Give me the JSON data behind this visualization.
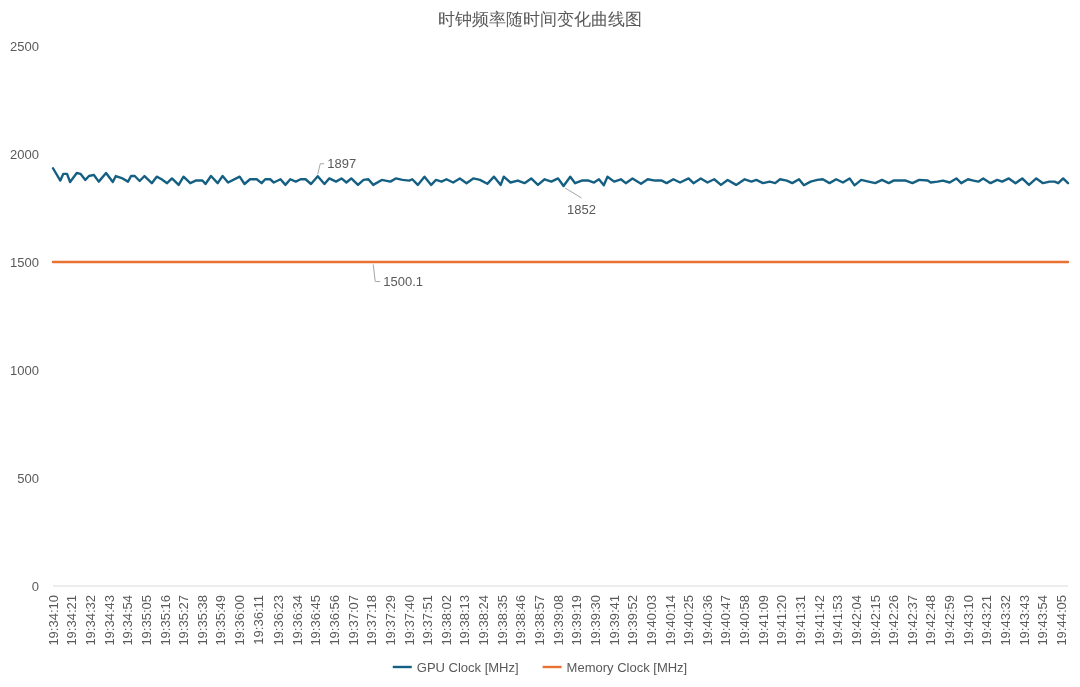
{
  "chart_data": {
    "type": "line",
    "title": "时钟频率随时间变化曲线图",
    "xlim": [
      19.5694,
      19.7358
    ],
    "xticks": [
      {
        "value": 19.56944,
        "label": "19:34:10"
      },
      {
        "value": 19.5725,
        "label": "19:34:21"
      },
      {
        "value": 19.57556,
        "label": "19:34:32"
      },
      {
        "value": 19.57861,
        "label": "19:34:43"
      },
      {
        "value": 19.58167,
        "label": "19:34:54"
      },
      {
        "value": 19.58472,
        "label": "19:35:05"
      },
      {
        "value": 19.58778,
        "label": "19:35:16"
      },
      {
        "value": 19.59083,
        "label": "19:35:27"
      },
      {
        "value": 19.59389,
        "label": "19:35:38"
      },
      {
        "value": 19.59694,
        "label": "19:35:49"
      },
      {
        "value": 19.6,
        "label": "19:36:00"
      },
      {
        "value": 19.60306,
        "label": "19:36:11"
      },
      {
        "value": 19.60639,
        "label": "19:36:23"
      },
      {
        "value": 19.60944,
        "label": "19:36:34"
      },
      {
        "value": 19.6125,
        "label": "19:36:45"
      },
      {
        "value": 19.61556,
        "label": "19:36:56"
      },
      {
        "value": 19.61861,
        "label": "19:37:07"
      },
      {
        "value": 19.62167,
        "label": "19:37:18"
      },
      {
        "value": 19.62472,
        "label": "19:37:29"
      },
      {
        "value": 19.62778,
        "label": "19:37:40"
      },
      {
        "value": 19.63083,
        "label": "19:37:51"
      },
      {
        "value": 19.63389,
        "label": "19:38:02"
      },
      {
        "value": 19.63694,
        "label": "19:38:13"
      },
      {
        "value": 19.64,
        "label": "19:38:24"
      },
      {
        "value": 19.64306,
        "label": "19:38:35"
      },
      {
        "value": 19.64611,
        "label": "19:38:46"
      },
      {
        "value": 19.64917,
        "label": "19:38:57"
      },
      {
        "value": 19.65222,
        "label": "19:39:08"
      },
      {
        "value": 19.65528,
        "label": "19:39:19"
      },
      {
        "value": 19.65833,
        "label": "19:39:30"
      },
      {
        "value": 19.66139,
        "label": "19:39:41"
      },
      {
        "value": 19.66444,
        "label": "19:39:52"
      },
      {
        "value": 19.6675,
        "label": "19:40:03"
      },
      {
        "value": 19.67056,
        "label": "19:40:14"
      },
      {
        "value": 19.67361,
        "label": "19:40:25"
      },
      {
        "value": 19.67667,
        "label": "19:40:36"
      },
      {
        "value": 19.67972,
        "label": "19:40:47"
      },
      {
        "value": 19.68278,
        "label": "19:40:58"
      },
      {
        "value": 19.68583,
        "label": "19:41:09"
      },
      {
        "value": 19.68889,
        "label": "19:41:20"
      },
      {
        "value": 19.69194,
        "label": "19:41:31"
      },
      {
        "value": 19.695,
        "label": "19:41:42"
      },
      {
        "value": 19.69806,
        "label": "19:41:53"
      },
      {
        "value": 19.70111,
        "label": "19:42:04"
      },
      {
        "value": 19.70417,
        "label": "19:42:15"
      },
      {
        "value": 19.70722,
        "label": "19:42:26"
      },
      {
        "value": 19.71028,
        "label": "19:42:37"
      },
      {
        "value": 19.71333,
        "label": "19:42:48"
      },
      {
        "value": 19.71639,
        "label": "19:42:59"
      },
      {
        "value": 19.71944,
        "label": "19:43:10"
      },
      {
        "value": 19.7225,
        "label": "19:43:21"
      },
      {
        "value": 19.72556,
        "label": "19:43:32"
      },
      {
        "value": 19.72861,
        "label": "19:43:43"
      },
      {
        "value": 19.73167,
        "label": "19:43:54"
      },
      {
        "value": 19.73472,
        "label": "19:44:05"
      }
    ],
    "ylim": [
      0,
      2500
    ],
    "yticks": [
      0,
      500,
      1000,
      1500,
      2000,
      2500
    ],
    "legend": "bottom",
    "series": [
      {
        "name": "GPU Clock [MHz]",
        "color": "#156082",
        "x": [
          19.5694,
          19.5706,
          19.5711,
          19.5717,
          19.5722,
          19.5733,
          19.5739,
          19.5747,
          19.5753,
          19.5761,
          19.5769,
          19.5781,
          19.5792,
          19.5797,
          19.5808,
          19.5817,
          19.5822,
          19.5828,
          19.5836,
          19.5844,
          19.5856,
          19.5864,
          19.5872,
          19.5881,
          19.5889,
          19.59,
          19.5908,
          19.5919,
          19.5928,
          19.5939,
          19.5944,
          19.5953,
          19.5964,
          19.5972,
          19.5981,
          19.6,
          19.6008,
          19.6017,
          19.6028,
          19.6036,
          19.6042,
          19.605,
          19.6056,
          19.6067,
          19.6075,
          19.6083,
          19.6092,
          19.61,
          19.6108,
          19.6117,
          19.6128,
          19.6139,
          19.6147,
          19.6158,
          19.6167,
          19.6175,
          19.6183,
          19.6194,
          19.6203,
          19.6211,
          19.6219,
          19.6233,
          19.6247,
          19.6256,
          19.6267,
          19.6278,
          19.6283,
          19.6292,
          19.6303,
          19.6314,
          19.6322,
          19.6331,
          19.6339,
          19.635,
          19.6361,
          19.6372,
          19.6383,
          19.6394,
          19.6406,
          19.6417,
          19.6428,
          19.6433,
          19.6444,
          19.6456,
          19.6467,
          19.6478,
          19.6489,
          19.65,
          19.6511,
          19.6522,
          19.6531,
          19.6542,
          19.655,
          19.6561,
          19.6572,
          19.6581,
          19.6589,
          19.6597,
          19.6603,
          19.6614,
          19.6625,
          19.6633,
          19.6644,
          19.6658,
          19.6669,
          19.6681,
          19.6692,
          19.67,
          19.6711,
          19.6722,
          19.6736,
          19.6744,
          19.6756,
          19.6767,
          19.6778,
          19.6789,
          19.68,
          19.6814,
          19.6828,
          19.6839,
          19.6847,
          19.6858,
          19.6869,
          19.6878,
          19.6886,
          19.6897,
          19.6906,
          19.6917,
          19.6925,
          19.6936,
          19.6947,
          19.6956,
          19.6967,
          19.6978,
          19.6989,
          19.7,
          19.7008,
          19.7019,
          19.7031,
          19.7042,
          19.7053,
          19.7064,
          19.7072,
          19.7081,
          19.7092,
          19.7103,
          19.7114,
          19.7128,
          19.7133,
          19.7144,
          19.7153,
          19.7164,
          19.7175,
          19.7183,
          19.7194,
          19.7203,
          19.7211,
          19.7219,
          19.7231,
          19.7242,
          19.725,
          19.7261,
          19.7272,
          19.7283,
          19.7294,
          19.7306,
          19.7317,
          19.7328,
          19.7336,
          19.7342,
          19.735,
          19.7358
        ],
        "values": [
          1934,
          1877,
          1908,
          1908,
          1870,
          1912,
          1908,
          1880,
          1898,
          1903,
          1872,
          1912,
          1870,
          1898,
          1887,
          1872,
          1898,
          1898,
          1875,
          1898,
          1865,
          1895,
          1883,
          1865,
          1887,
          1857,
          1895,
          1865,
          1877,
          1877,
          1861,
          1898,
          1865,
          1898,
          1868,
          1895,
          1861,
          1883,
          1883,
          1865,
          1883,
          1883,
          1868,
          1883,
          1857,
          1883,
          1872,
          1883,
          1883,
          1861,
          1897,
          1861,
          1887,
          1872,
          1887,
          1868,
          1887,
          1857,
          1880,
          1883,
          1857,
          1880,
          1872,
          1887,
          1880,
          1877,
          1883,
          1857,
          1895,
          1857,
          1880,
          1872,
          1883,
          1868,
          1887,
          1865,
          1887,
          1880,
          1862,
          1895,
          1857,
          1895,
          1868,
          1877,
          1865,
          1887,
          1857,
          1883,
          1872,
          1887,
          1852,
          1895,
          1865,
          1877,
          1877,
          1868,
          1883,
          1855,
          1895,
          1872,
          1883,
          1865,
          1887,
          1862,
          1883,
          1877,
          1877,
          1865,
          1883,
          1868,
          1887,
          1865,
          1887,
          1868,
          1883,
          1857,
          1880,
          1857,
          1883,
          1872,
          1880,
          1865,
          1872,
          1865,
          1883,
          1877,
          1865,
          1883,
          1855,
          1872,
          1880,
          1883,
          1865,
          1883,
          1868,
          1887,
          1855,
          1880,
          1872,
          1865,
          1880,
          1865,
          1877,
          1877,
          1877,
          1865,
          1880,
          1877,
          1868,
          1872,
          1877,
          1868,
          1887,
          1865,
          1883,
          1877,
          1872,
          1887,
          1865,
          1880,
          1872,
          1887,
          1865,
          1887,
          1857,
          1887,
          1865,
          1872,
          1872,
          1865,
          1887,
          1865
        ]
      },
      {
        "name": "Memory Clock [MHz]",
        "color": "#e97132",
        "x": [
          19.5694,
          19.7358
        ],
        "values": [
          1500.1,
          1500.1
        ]
      }
    ],
    "annotations": [
      {
        "text": "1897",
        "x": 19.6128,
        "y": 1897
      },
      {
        "text": "1852",
        "x": 19.6531,
        "y": 1852
      },
      {
        "text": "1500.1",
        "x": 19.6219,
        "y": 1500.1
      }
    ]
  }
}
